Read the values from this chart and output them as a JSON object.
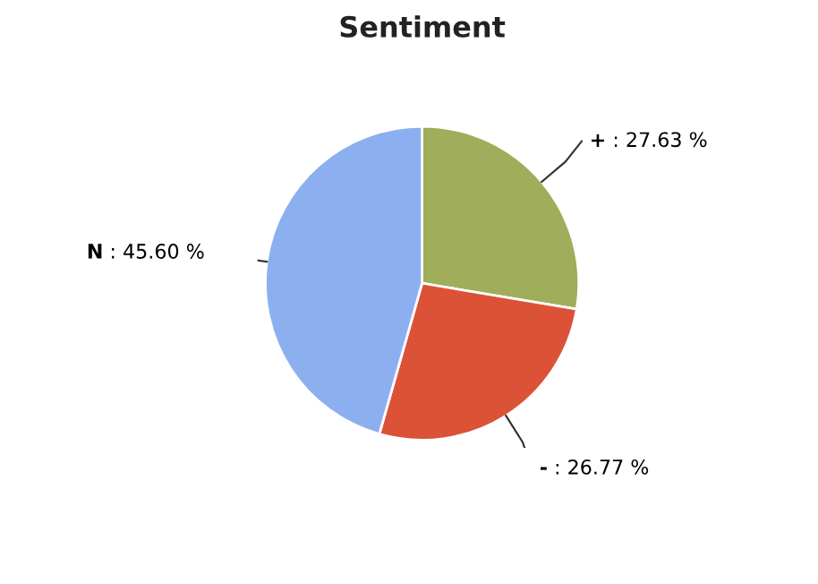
{
  "chart_data": {
    "type": "pie",
    "title": "Sentiment",
    "categories": [
      "+",
      "-",
      "N"
    ],
    "values": [
      27.63,
      26.77,
      45.6
    ],
    "value_labels": [
      ": 27.63 %",
      ": 26.77 %",
      ": 45.60 %"
    ],
    "colors": [
      "#a0ad5a",
      "#dc5237",
      "#8cb0ef"
    ],
    "legend": false
  }
}
